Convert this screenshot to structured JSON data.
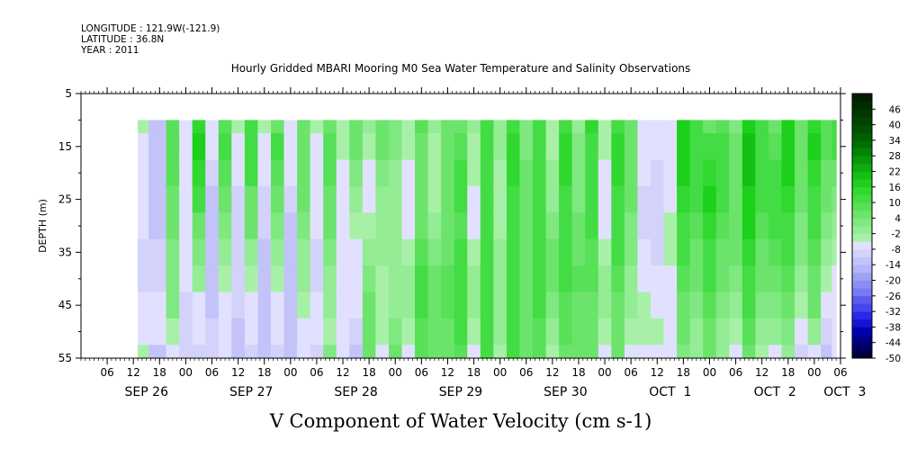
{
  "meta": {
    "longitude": "LONGITUDE : 121.9W(-121.9)",
    "latitude": "LATITUDE : 36.8N",
    "year": "YEAR : 2011"
  },
  "chart_data": {
    "type": "heatmap",
    "title": "Hourly Gridded MBARI Mooring M0 Sea Water Temperature and Salinity Observations",
    "xlabel": "V Component of Water Velocity (cm s-1)",
    "ylabel": "DEPTH (m)",
    "x_start_hour": 0,
    "x_end_hour": 174,
    "data_start_hour": 13,
    "data_end_hour": 173,
    "x_tick_labels": [
      "06",
      "12",
      "18",
      "00",
      "06",
      "12",
      "18",
      "00",
      "06",
      "12",
      "18",
      "00",
      "06",
      "12",
      "18",
      "00",
      "06",
      "12",
      "18",
      "00",
      "06",
      "12",
      "18",
      "00",
      "06",
      "12",
      "18",
      "00",
      "06"
    ],
    "x_tick_hours": [
      6,
      12,
      18,
      24,
      30,
      36,
      42,
      48,
      54,
      60,
      66,
      72,
      78,
      84,
      90,
      96,
      102,
      108,
      114,
      120,
      126,
      132,
      138,
      144,
      150,
      156,
      162,
      168,
      174
    ],
    "date_labels": [
      "SEP 26",
      "SEP 27",
      "SEP 28",
      "SEP 29",
      "SEP 30",
      "OCT  1",
      "OCT  2",
      "OCT  3"
    ],
    "date_hours": [
      15,
      39,
      63,
      87,
      111,
      135,
      159,
      175
    ],
    "y_ticks": [
      5,
      15,
      25,
      35,
      45,
      55
    ],
    "ylim": [
      5,
      55
    ],
    "data_top_depth": 10,
    "colorbar": {
      "labels": [
        "46",
        "40",
        "34",
        "28",
        "22",
        "16",
        "10",
        "4",
        "-2",
        "-8",
        "-14",
        "-20",
        "-26",
        "-32",
        "-38",
        "-44",
        "-50"
      ],
      "min": -50,
      "max": 52,
      "step": 3,
      "colors": [
        "#00003c",
        "#000064",
        "#00008c",
        "#0000b4",
        "#1414d2",
        "#2828e6",
        "#4646eb",
        "#5a5af0",
        "#7878f0",
        "#8c8cf5",
        "#a0a0f5",
        "#b4b4fa",
        "#c3c3fa",
        "#d2d2fa",
        "#e1e1ff",
        "#a8f0a8",
        "#94ec94",
        "#80e880",
        "#6ce46c",
        "#58e058",
        "#44dc44",
        "#30d830",
        "#1cd01c",
        "#14c014",
        "#0eac0e",
        "#089808",
        "#048404",
        "#007000",
        "#006000",
        "#005000",
        "#004400",
        "#003800",
        "#002c00",
        "#002000"
      ]
    },
    "values_x_hours": [
      13,
      18,
      21,
      24,
      27,
      30,
      33,
      36,
      39,
      42,
      45,
      48,
      51,
      54,
      57,
      60,
      63,
      66,
      69,
      72,
      75,
      78,
      81,
      84,
      87,
      90,
      93,
      96,
      99,
      102,
      105,
      108,
      111,
      114,
      117,
      120,
      123,
      126,
      129,
      132,
      135,
      138,
      141,
      144,
      147,
      150,
      153,
      156,
      159,
      162,
      165,
      168,
      171,
      173
    ],
    "values_depths": [
      10,
      15,
      20,
      25,
      30,
      35,
      40,
      45,
      50,
      55
    ],
    "values": [
      [
        -4,
        -6,
        -6,
        -8,
        -8,
        -10,
        -10,
        -8,
        -6,
        -4
      ],
      [
        -12,
        -12,
        -12,
        -12,
        -12,
        -10,
        -10,
        -6,
        -8,
        -12
      ],
      [
        8,
        8,
        8,
        6,
        4,
        2,
        2,
        2,
        -4,
        -8
      ],
      [
        -8,
        -6,
        -6,
        -6,
        -6,
        -6,
        -8,
        -10,
        -10,
        -10
      ],
      [
        14,
        16,
        14,
        10,
        6,
        2,
        -2,
        -6,
        -8,
        -10
      ],
      [
        -6,
        -8,
        -10,
        -12,
        -12,
        -12,
        -12,
        -12,
        -10,
        -10
      ],
      [
        8,
        10,
        8,
        4,
        2,
        -2,
        -4,
        -6,
        -6,
        -8
      ],
      [
        -4,
        -6,
        -8,
        -10,
        -10,
        -10,
        -10,
        -10,
        -12,
        -14
      ],
      [
        12,
        12,
        10,
        6,
        4,
        -2,
        -4,
        -6,
        -8,
        -10
      ],
      [
        -4,
        -6,
        -8,
        -10,
        -10,
        -12,
        -12,
        -12,
        -12,
        -12
      ],
      [
        6,
        10,
        8,
        6,
        2,
        -2,
        -4,
        -6,
        -8,
        -10
      ],
      [
        -6,
        -8,
        -8,
        -10,
        -12,
        -12,
        -12,
        -12,
        -14,
        -14
      ],
      [
        4,
        6,
        6,
        4,
        2,
        0,
        -2,
        -4,
        -6,
        -8
      ],
      [
        -4,
        -6,
        -6,
        -8,
        -8,
        -10,
        -10,
        -8,
        -8,
        -10
      ],
      [
        6,
        8,
        8,
        6,
        4,
        2,
        0,
        -2,
        -4,
        2
      ],
      [
        -4,
        -4,
        -6,
        -6,
        -8,
        -8,
        -6,
        -6,
        -6,
        -6
      ],
      [
        4,
        4,
        2,
        -2,
        -4,
        -6,
        -6,
        -8,
        -10,
        -12
      ],
      [
        -2,
        -4,
        -6,
        -6,
        -4,
        -2,
        2,
        4,
        4,
        6
      ],
      [
        6,
        4,
        2,
        0,
        -2,
        -2,
        -4,
        -4,
        -4,
        -6
      ],
      [
        2,
        2,
        0,
        -2,
        -2,
        -2,
        -2,
        -2,
        2,
        4
      ],
      [
        -4,
        -4,
        -6,
        -6,
        -6,
        -4,
        -2,
        -2,
        -4,
        -6
      ],
      [
        8,
        6,
        4,
        4,
        6,
        8,
        10,
        10,
        8,
        8
      ],
      [
        -2,
        -4,
        -4,
        -4,
        -2,
        2,
        4,
        6,
        6,
        6
      ],
      [
        4,
        4,
        4,
        4,
        4,
        6,
        8,
        8,
        6,
        6
      ],
      [
        6,
        8,
        10,
        10,
        8,
        10,
        12,
        12,
        10,
        8
      ],
      [
        -2,
        -4,
        -4,
        -6,
        -6,
        -4,
        -2,
        -2,
        -4,
        -6
      ],
      [
        10,
        10,
        12,
        12,
        10,
        12,
        12,
        12,
        10,
        10
      ],
      [
        -2,
        -2,
        -4,
        -4,
        -4,
        -2,
        -2,
        -2,
        -2,
        -4
      ],
      [
        12,
        14,
        14,
        12,
        10,
        12,
        12,
        12,
        10,
        10
      ],
      [
        2,
        2,
        4,
        6,
        6,
        4,
        4,
        4,
        4,
        4
      ],
      [
        10,
        12,
        12,
        12,
        10,
        10,
        10,
        10,
        8,
        8
      ],
      [
        -4,
        -4,
        -2,
        -2,
        2,
        4,
        4,
        2,
        -2,
        -4
      ],
      [
        12,
        14,
        14,
        12,
        12,
        10,
        10,
        8,
        8,
        6
      ],
      [
        0,
        2,
        2,
        2,
        4,
        6,
        8,
        6,
        6,
        4
      ],
      [
        14,
        12,
        12,
        12,
        10,
        8,
        8,
        6,
        6,
        4
      ],
      [
        -4,
        -4,
        -6,
        -6,
        -6,
        -4,
        -2,
        -2,
        -4,
        -6
      ],
      [
        12,
        14,
        14,
        12,
        10,
        10,
        8,
        6,
        6,
        4
      ],
      [
        4,
        6,
        6,
        4,
        2,
        2,
        0,
        -2,
        -4,
        -6
      ],
      [
        -6,
        -8,
        -8,
        -10,
        -10,
        -8,
        -6,
        -4,
        -4,
        -6
      ],
      [
        -8,
        -8,
        -10,
        -10,
        -10,
        -10,
        -8,
        -6,
        -4,
        -6
      ],
      [
        -8,
        -8,
        -6,
        -6,
        -4,
        -4,
        -6,
        -6,
        -8,
        -8
      ],
      [
        16,
        18,
        16,
        14,
        12,
        10,
        8,
        6,
        4,
        2
      ],
      [
        10,
        12,
        12,
        10,
        8,
        6,
        4,
        2,
        0,
        -2
      ],
      [
        6,
        10,
        14,
        16,
        14,
        12,
        10,
        8,
        6,
        4
      ],
      [
        8,
        10,
        10,
        10,
        8,
        6,
        4,
        2,
        0,
        -2
      ],
      [
        2,
        4,
        6,
        6,
        6,
        4,
        2,
        -2,
        -4,
        -6
      ],
      [
        18,
        20,
        20,
        18,
        16,
        14,
        12,
        10,
        8,
        6
      ],
      [
        10,
        12,
        12,
        10,
        8,
        6,
        4,
        2,
        -2,
        -4
      ],
      [
        6,
        8,
        10,
        12,
        10,
        8,
        6,
        2,
        -2,
        -6
      ],
      [
        16,
        18,
        16,
        14,
        12,
        10,
        8,
        6,
        2,
        -2
      ],
      [
        4,
        6,
        6,
        4,
        2,
        2,
        -2,
        -4,
        -8,
        -10
      ],
      [
        14,
        16,
        14,
        12,
        10,
        8,
        6,
        4,
        -2,
        -6
      ],
      [
        8,
        8,
        6,
        4,
        2,
        -2,
        -4,
        -8,
        -10,
        -12
      ],
      [
        12,
        10,
        6,
        2,
        -2,
        -4,
        -6,
        -8,
        -8,
        -6
      ]
    ]
  }
}
